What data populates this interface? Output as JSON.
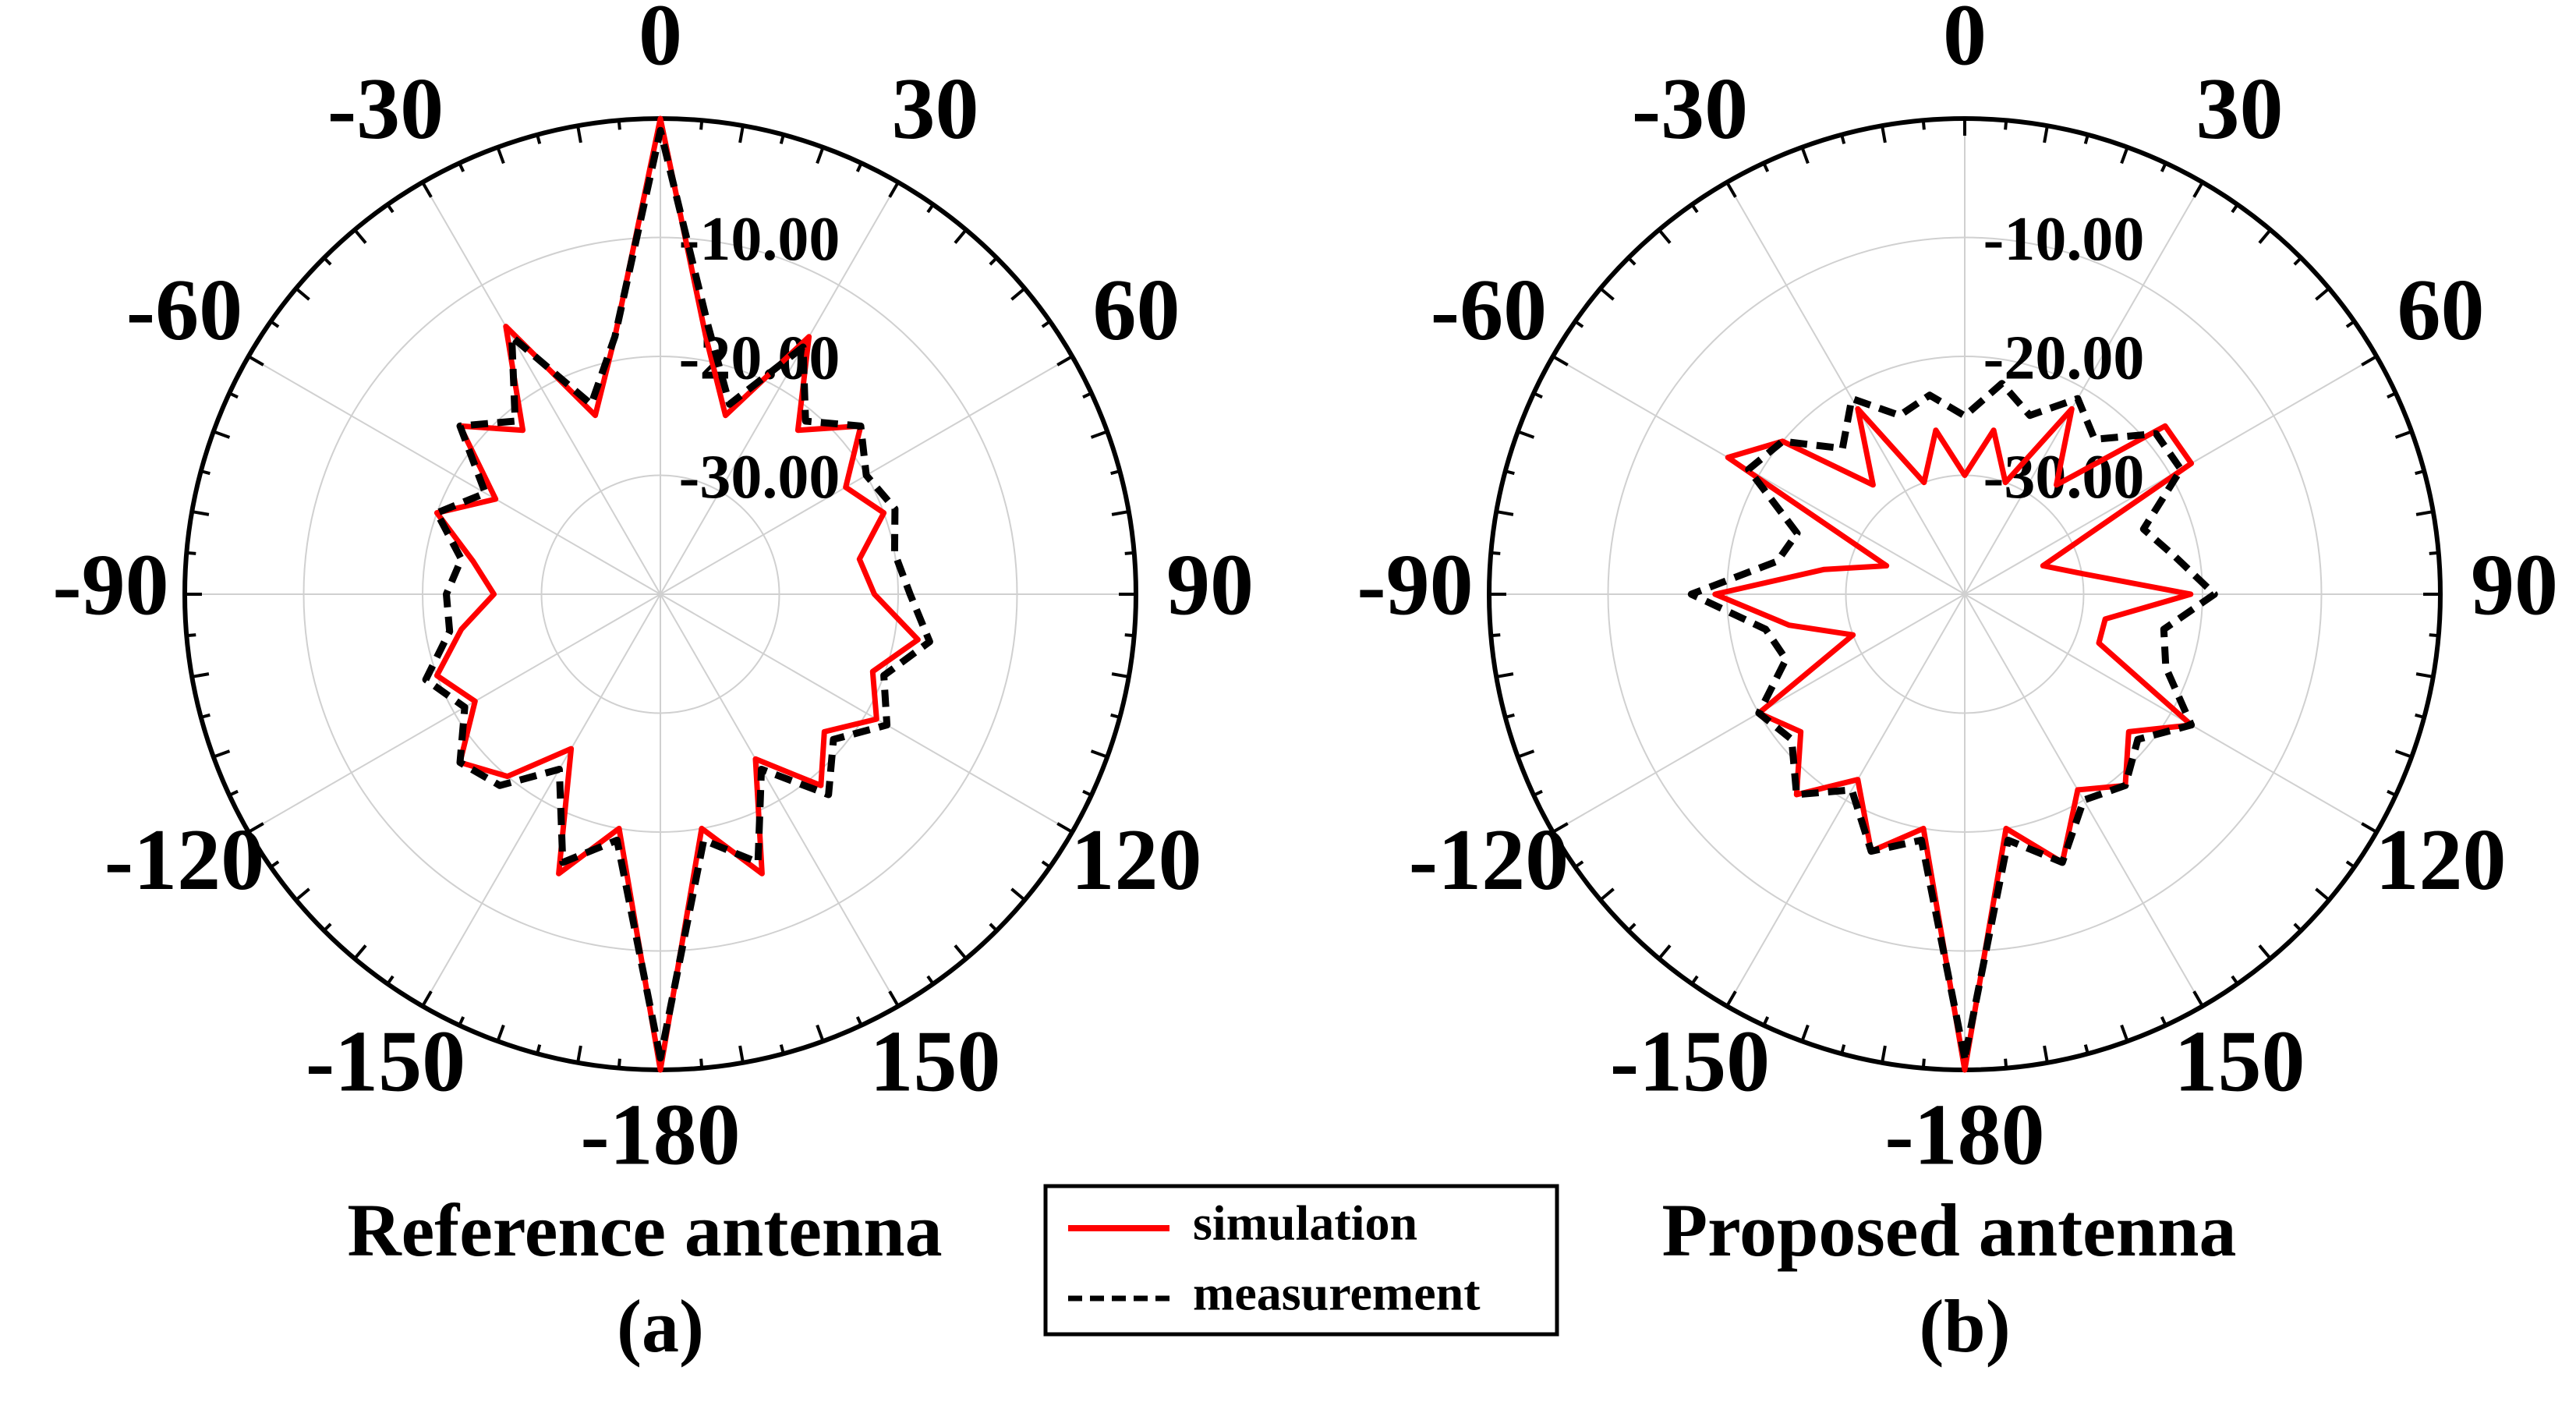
{
  "chart_data": [
    {
      "type": "polar",
      "title": "Reference antenna",
      "label": "(a)",
      "theta": [
        -180,
        -170,
        -160,
        -150,
        -140,
        -130,
        -120,
        -110,
        -100,
        -90,
        -80,
        -70,
        -60,
        -50,
        -40,
        -30,
        -20,
        -10,
        0,
        10,
        20,
        30,
        40,
        50,
        60,
        70,
        80,
        90,
        100,
        110,
        120,
        130,
        140,
        150,
        160,
        170
      ],
      "series": [
        {
          "name": "simulation",
          "color": "#ff0000",
          "dash": false,
          "values": [
            0,
            -20,
            -15,
            -25,
            -20,
            -18,
            -22,
            -20,
            -23,
            -26,
            -24,
            -20,
            -24,
            -18,
            -22,
            -14,
            -24,
            -18,
            0,
            -18,
            -24,
            -15,
            -22,
            -18,
            -22,
            -20,
            -23,
            -22,
            -18,
            -21,
            -19,
            -22,
            -19,
            -24,
            -15,
            -20
          ]
        },
        {
          "name": "measurement",
          "color": "#000000",
          "dash": true,
          "values": [
            -1,
            -19,
            -16,
            -23,
            -19,
            -18,
            -21,
            -19,
            -22,
            -22,
            -23,
            -20,
            -23,
            -18,
            -21,
            -15,
            -23,
            -18,
            -1,
            -17,
            -23,
            -16,
            -21,
            -18,
            -20,
            -19,
            -20,
            -19,
            -17,
            -20,
            -18,
            -21,
            -18,
            -23,
            -16,
            -19
          ]
        }
      ],
      "rlim": [
        -40,
        0
      ],
      "rticks": [
        {
          "value": -30,
          "label": "-30.00"
        },
        {
          "value": -20,
          "label": "-20.00"
        },
        {
          "value": -10,
          "label": "-10.00"
        }
      ],
      "thetaticks": [
        0,
        30,
        60,
        90,
        120,
        150,
        -180,
        -150,
        -120,
        -90,
        -60,
        -30
      ],
      "grid": true,
      "legend": "bottom"
    },
    {
      "type": "polar",
      "title": "Proposed antenna",
      "label": "(b)",
      "theta": [
        -180,
        -170,
        -160,
        -150,
        -140,
        -130,
        -120,
        -110,
        -100,
        -90,
        -80,
        -70,
        -60,
        -50,
        -40,
        -30,
        -20,
        -10,
        0,
        10,
        20,
        30,
        40,
        50,
        60,
        70,
        80,
        90,
        100,
        110,
        120,
        130,
        140,
        150,
        160,
        170
      ],
      "series": [
        {
          "name": "simulation",
          "color": "#ff0000",
          "dash": false,
          "values": [
            0,
            -20,
            -17,
            -22,
            -18,
            -22,
            -20,
            -30,
            -25,
            -19,
            -28,
            -33,
            -17,
            -20,
            -28,
            -22,
            -30,
            -26,
            -30,
            -26,
            -30,
            -22,
            -28,
            -18,
            -18,
            -33,
            -30,
            -21,
            -28,
            -28,
            -18,
            -22,
            -19,
            -21,
            -16,
            -20
          ]
        },
        {
          "name": "measurement",
          "color": "#000000",
          "dash": true,
          "values": [
            -1,
            -19,
            -17,
            -21,
            -18,
            -21,
            -20,
            -24,
            -23,
            -17,
            -24,
            -25,
            -19,
            -20,
            -24,
            -21,
            -24,
            -23,
            -25,
            -22,
            -24,
            -21,
            -23,
            -19,
            -19,
            -24,
            -22,
            -19,
            -23,
            -22,
            -18,
            -21,
            -19,
            -20,
            -16,
            -19
          ]
        }
      ],
      "rlim": [
        -40,
        0
      ],
      "rticks": [
        {
          "value": -30,
          "label": "-30.00"
        },
        {
          "value": -20,
          "label": "-20.00"
        },
        {
          "value": -10,
          "label": "-10.00"
        }
      ],
      "thetaticks": [
        0,
        30,
        60,
        90,
        120,
        150,
        -180,
        -150,
        -120,
        -90,
        -60,
        -30
      ],
      "grid": true
    }
  ]
}
